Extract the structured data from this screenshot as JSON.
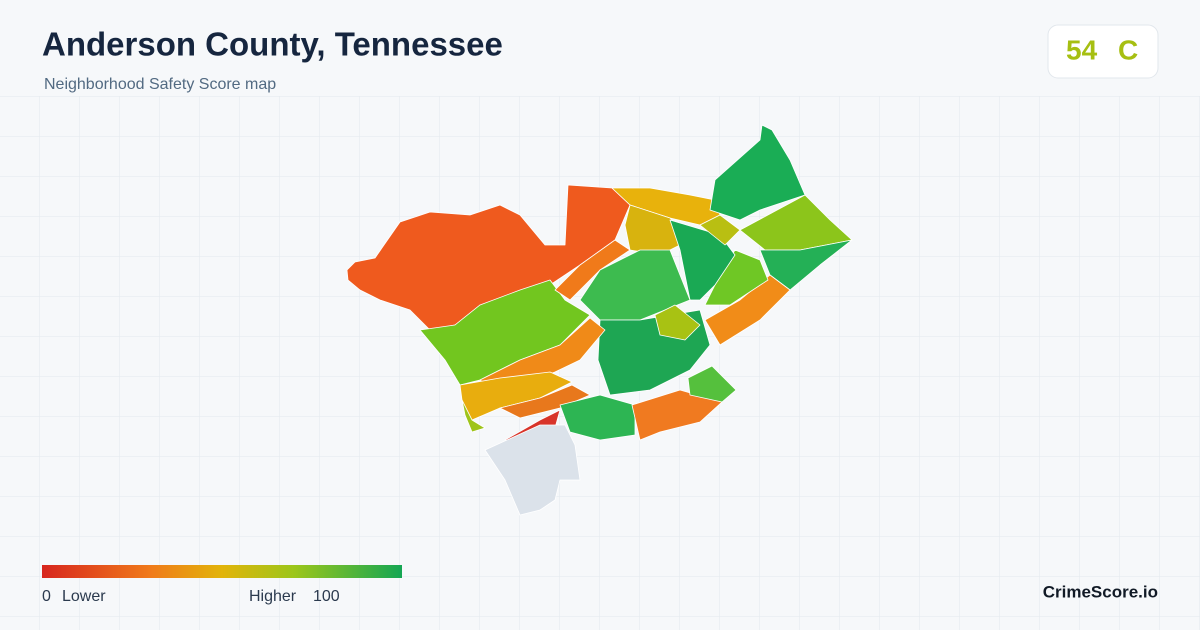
{
  "header": {
    "title": "Anderson County, Tennessee",
    "subtitle": "Neighborhood Safety Score map"
  },
  "score": {
    "value": 54,
    "grade": "C"
  },
  "legend": {
    "min": 0,
    "min_label": "Lower",
    "max_label": "Higher",
    "max": 100
  },
  "brand": "CrimeScore.io"
}
